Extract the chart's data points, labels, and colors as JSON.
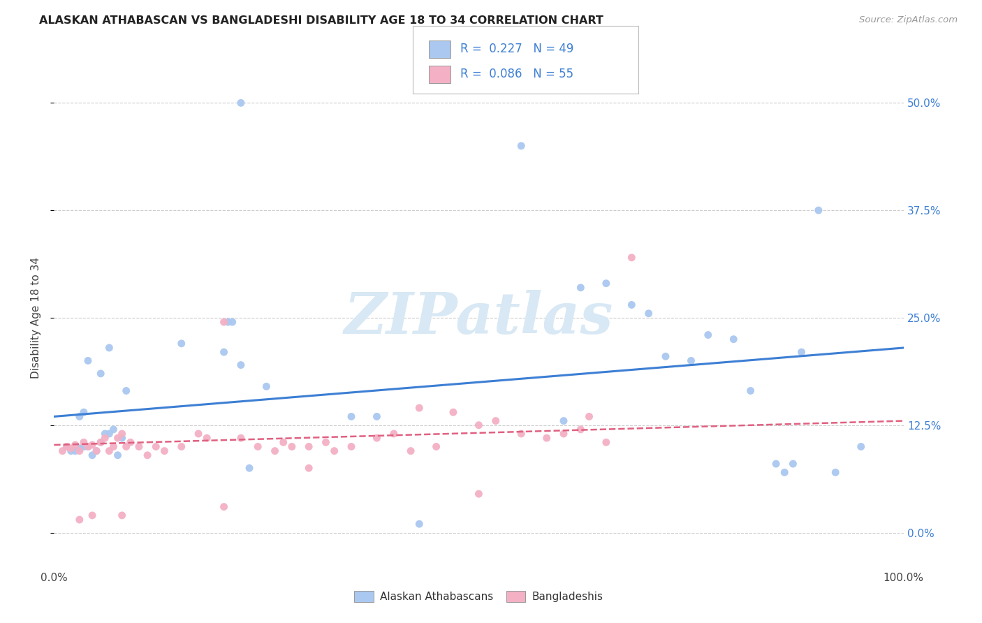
{
  "title": "ALASKAN ATHABASCAN VS BANGLADESHI DISABILITY AGE 18 TO 34 CORRELATION CHART",
  "source": "Source: ZipAtlas.com",
  "ylabel": "Disability Age 18 to 34",
  "ytick_vals": [
    0.0,
    12.5,
    25.0,
    37.5,
    50.0
  ],
  "xlim": [
    0.0,
    100.0
  ],
  "ylim": [
    -4.0,
    54.0
  ],
  "blue_color": "#aac8f0",
  "pink_color": "#f4b0c4",
  "blue_line_color": "#3d7fd4",
  "pink_line_color": "#e06080",
  "right_tick_color": "#3d7fd4",
  "watermark_text": "ZIPatlas",
  "watermark_color": "#d8e8f4",
  "blue_R": "0.227",
  "blue_N": "49",
  "pink_R": "0.086",
  "pink_N": "55",
  "legend_blue_label": "Alaskan Athabascans",
  "legend_pink_label": "Bangladeshis",
  "blue_scatter_x": [
    1.5,
    2.0,
    2.5,
    3.0,
    3.5,
    4.0,
    4.5,
    5.0,
    5.5,
    6.0,
    6.5,
    7.0,
    7.5,
    8.0,
    3.0,
    3.5,
    4.0,
    5.5,
    6.5,
    8.5,
    15.0,
    20.0,
    20.5,
    21.0,
    22.0,
    23.0,
    25.0,
    35.0,
    38.0,
    55.0,
    60.0,
    62.0,
    65.0,
    68.0,
    70.0,
    72.0,
    75.0,
    77.0,
    80.0,
    82.0,
    85.0,
    86.0,
    87.0,
    88.0,
    90.0,
    92.0,
    95.0,
    22.0,
    43.0
  ],
  "blue_scatter_y": [
    10.0,
    9.5,
    9.5,
    9.8,
    10.0,
    10.0,
    9.0,
    9.5,
    10.5,
    11.5,
    11.5,
    12.0,
    9.0,
    11.0,
    13.5,
    14.0,
    20.0,
    18.5,
    21.5,
    16.5,
    22.0,
    21.0,
    24.5,
    24.5,
    19.5,
    7.5,
    17.0,
    13.5,
    13.5,
    45.0,
    13.0,
    28.5,
    29.0,
    26.5,
    25.5,
    20.5,
    20.0,
    23.0,
    22.5,
    16.5,
    8.0,
    7.0,
    8.0,
    21.0,
    37.5,
    7.0,
    10.0,
    50.0,
    1.0
  ],
  "pink_scatter_x": [
    1.0,
    1.5,
    2.0,
    2.5,
    3.0,
    3.5,
    4.0,
    4.5,
    5.0,
    5.5,
    6.0,
    6.5,
    7.0,
    7.5,
    8.0,
    8.5,
    9.0,
    10.0,
    11.0,
    12.0,
    13.0,
    15.0,
    17.0,
    18.0,
    20.0,
    22.0,
    24.0,
    26.0,
    27.0,
    28.0,
    30.0,
    32.0,
    33.0,
    35.0,
    38.0,
    40.0,
    42.0,
    45.0,
    47.0,
    50.0,
    52.0,
    55.0,
    58.0,
    60.0,
    62.0,
    65.0,
    68.0,
    3.0,
    4.5,
    8.0,
    20.0,
    30.0,
    43.0,
    50.0,
    63.0
  ],
  "pink_scatter_y": [
    9.5,
    10.0,
    9.8,
    10.2,
    9.5,
    10.5,
    10.0,
    10.2,
    9.5,
    10.5,
    11.0,
    9.5,
    10.0,
    11.0,
    11.5,
    10.0,
    10.5,
    10.0,
    9.0,
    10.0,
    9.5,
    10.0,
    11.5,
    11.0,
    24.5,
    11.0,
    10.0,
    9.5,
    10.5,
    10.0,
    10.0,
    10.5,
    9.5,
    10.0,
    11.0,
    11.5,
    9.5,
    10.0,
    14.0,
    12.5,
    13.0,
    11.5,
    11.0,
    11.5,
    12.0,
    10.5,
    32.0,
    1.5,
    2.0,
    2.0,
    3.0,
    7.5,
    14.5,
    4.5,
    13.5
  ],
  "blue_line_y_start": 13.5,
  "blue_line_y_end": 21.5,
  "pink_line_y_start": 10.2,
  "pink_line_y_end": 13.0
}
